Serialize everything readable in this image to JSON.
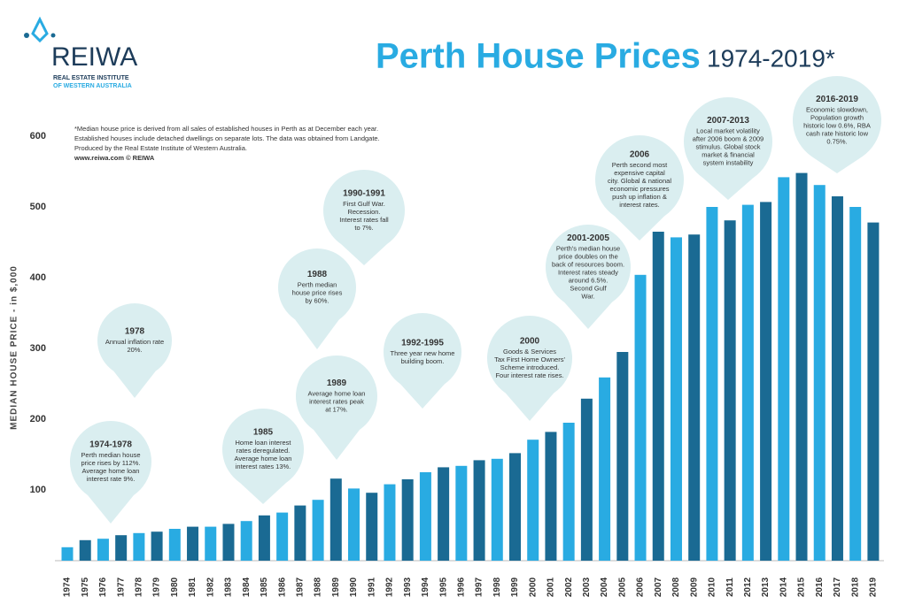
{
  "logo": {
    "name": "REIWA",
    "line1": "REAL ESTATE INSTITUTE",
    "line2": "OF WESTERN AUSTRALIA"
  },
  "footnote": [
    "*Median house price is derived from all sales of established houses in Perth as at December each year.",
    "Established houses include detached dwellings on separate lots. The data was obtained from Landgate.",
    "Produced by the Real Estate Institute of Western Australia.",
    "www.reiwa.com  © REIWA"
  ],
  "chart_data": {
    "type": "bar",
    "title": "Perth House Prices",
    "subtitle": "1974-2019*",
    "y_label": "MEDIAN HOUSE PRICE - in $,000",
    "categories": [
      "1974",
      "1975",
      "1976",
      "1977",
      "1978",
      "1979",
      "1980",
      "1981",
      "1982",
      "1983",
      "1984",
      "1985",
      "1986",
      "1987",
      "1988",
      "1989",
      "1990",
      "1991",
      "1992",
      "1993",
      "1994",
      "1995",
      "1996",
      "1997",
      "1998",
      "1999",
      "2000",
      "2001",
      "2002",
      "2003",
      "2004",
      "2005",
      "2006",
      "2007",
      "2008",
      "2009",
      "2010",
      "2011",
      "2012",
      "2013",
      "2014",
      "2015",
      "2016",
      "2017",
      "2018",
      "2019"
    ],
    "values": [
      19,
      29,
      31,
      36,
      39,
      41,
      45,
      48,
      48,
      52,
      56,
      64,
      68,
      78,
      86,
      116,
      102,
      96,
      108,
      115,
      125,
      132,
      134,
      142,
      144,
      152,
      171,
      182,
      195,
      229,
      259,
      295,
      404,
      465,
      457,
      461,
      500,
      481,
      503,
      507,
      542,
      548,
      531,
      515,
      500,
      478
    ],
    "colors": [
      "#29abe2",
      "#1a6a93"
    ],
    "ylim": [
      0,
      600
    ],
    "yticks": [
      100,
      200,
      300,
      400,
      500,
      600
    ],
    "grid": false,
    "annotations": [
      {
        "title": "1974-1978",
        "lines": [
          "Perth median house",
          "price rises by 112%.",
          "Average home loan",
          "interest rate 9%."
        ]
      },
      {
        "title": "1978",
        "lines": [
          "Annual inflation rate",
          "20%."
        ]
      },
      {
        "title": "1985",
        "lines": [
          "Home loan interest",
          "rates deregulated.",
          "Average home loan",
          "interest rates 13%."
        ]
      },
      {
        "title": "1988",
        "lines": [
          "Perth median",
          "house price rises",
          "by 60%."
        ]
      },
      {
        "title": "1989",
        "lines": [
          "Average home loan",
          "interest rates peak",
          "at 17%."
        ]
      },
      {
        "title": "1990-1991",
        "lines": [
          "First Gulf War.",
          "Recession.",
          "Interest rates fall",
          "to 7%."
        ]
      },
      {
        "title": "1992-1995",
        "lines": [
          "Three year new home",
          "building boom."
        ]
      },
      {
        "title": "2000",
        "lines": [
          "Goods & Services",
          "Tax First Home Owners'",
          "Scheme introduced.",
          "Four interest rate rises."
        ]
      },
      {
        "title": "2001-2005",
        "lines": [
          "Perth's median house",
          "price doubles on the",
          "back of resources boom.",
          "Interest rates steady",
          "around 6.5%.",
          "Second Gulf",
          "War."
        ]
      },
      {
        "title": "2006",
        "lines": [
          "Perth second most",
          "expensive capital",
          "city. Global & national",
          "economic pressures",
          "push up inflation &",
          "interest rates."
        ]
      },
      {
        "title": "2007-2013",
        "lines": [
          "Local market volatility",
          "after 2006 boom & 2009",
          "stimulus. Global stock",
          "market & financial",
          "system instability"
        ]
      },
      {
        "title": "2016-2019",
        "lines": [
          "Economic slowdown,",
          "Population growth",
          "historic low 0.6%, RBA",
          "cash rate historic low",
          "0.75%."
        ]
      }
    ]
  }
}
